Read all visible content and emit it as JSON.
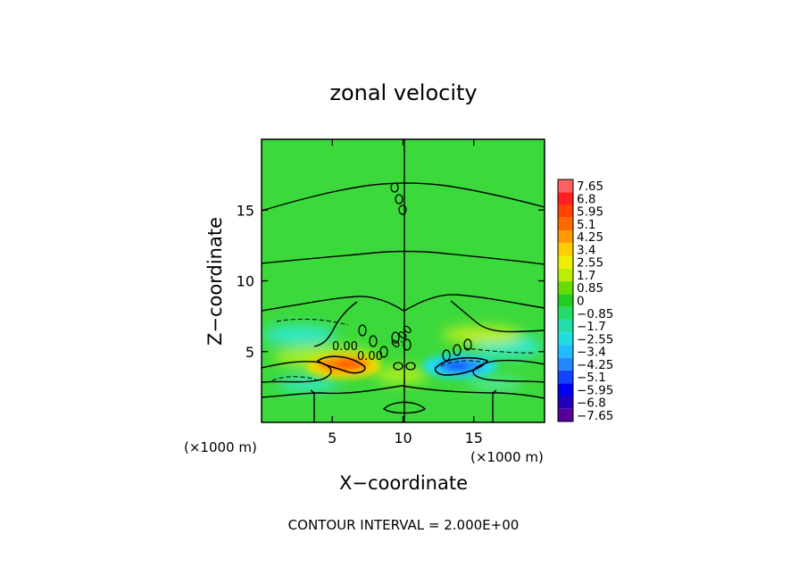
{
  "chart_data": {
    "type": "heatmap",
    "title": "zonal velocity",
    "xlabel": "X−coordinate",
    "ylabel": "Z−coordinate",
    "xlim": [
      0,
      20
    ],
    "ylim": [
      0,
      20
    ],
    "x_unit": "(×1000 m)",
    "y_unit": "(×1000 m)",
    "x_ticks": [
      5,
      10,
      15
    ],
    "y_ticks": [
      5,
      10,
      15
    ],
    "footer": "CONTOUR INTERVAL = 2.000E+00",
    "contour_interval": 2.0,
    "contour_labels": [
      "0.00",
      "0.00",
      "0.00"
    ],
    "colorbar": {
      "levels": [
        "7.65",
        "6.8",
        "5.95",
        "5.1",
        "4.25",
        "3.4",
        "2.55",
        "1.7",
        "0.85",
        "0",
        "−0.85",
        "−1.7",
        "−2.55",
        "−3.4",
        "−4.25",
        "−5.1",
        "−5.95",
        "−6.8",
        "−7.65"
      ],
      "colors": [
        "#ff6060",
        "#ff2020",
        "#ff4400",
        "#ff6a00",
        "#ff9900",
        "#ffcc00",
        "#eeee00",
        "#bbee00",
        "#66dd00",
        "#22cc22",
        "#22dd66",
        "#22ddaa",
        "#22dddd",
        "#22bbff",
        "#2288ff",
        "#1144ff",
        "#0000ee",
        "#2200bb",
        "#550099"
      ]
    },
    "field_features": [
      {
        "feature": "positive jet",
        "x": 6.8,
        "z": 4.1,
        "peak": 5.5
      },
      {
        "feature": "negative jet",
        "x": 13.6,
        "z": 4.0,
        "peak": -4.5
      },
      {
        "feature": "weak negative band left",
        "x": 2.0,
        "z": 5.5,
        "peak": -2.0
      },
      {
        "feature": "weak negative band right",
        "x": 17.5,
        "z": 5.2,
        "peak": -2.0
      },
      {
        "feature": "weak positive band right",
        "x": 15.5,
        "z": 6.5,
        "peak": 1.5
      },
      {
        "feature": "weak positive band left",
        "x": 3.8,
        "z": 4.7,
        "peak": 2.0
      }
    ]
  }
}
